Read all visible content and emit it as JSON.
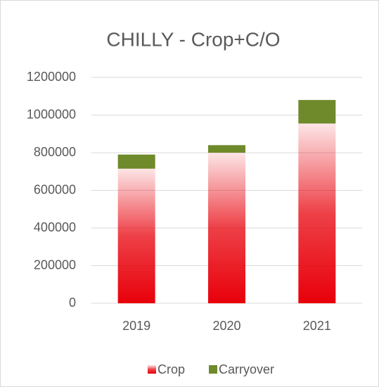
{
  "chart_data": {
    "type": "stacked_bar",
    "title": "CHILLY - Crop+C/O",
    "categories": [
      "2019",
      "2020",
      "2021"
    ],
    "series": [
      {
        "name": "Crop",
        "color": "#e8000a",
        "values": [
          715000,
          800000,
          955000
        ]
      },
      {
        "name": "Carryover",
        "color": "#6f8a2a",
        "values": [
          75000,
          40000,
          125000
        ]
      }
    ],
    "ylim": [
      0,
      1200000
    ],
    "yticks": [
      0,
      200000,
      400000,
      600000,
      800000,
      1000000,
      1200000
    ],
    "grid": true,
    "legend": "bottom"
  }
}
